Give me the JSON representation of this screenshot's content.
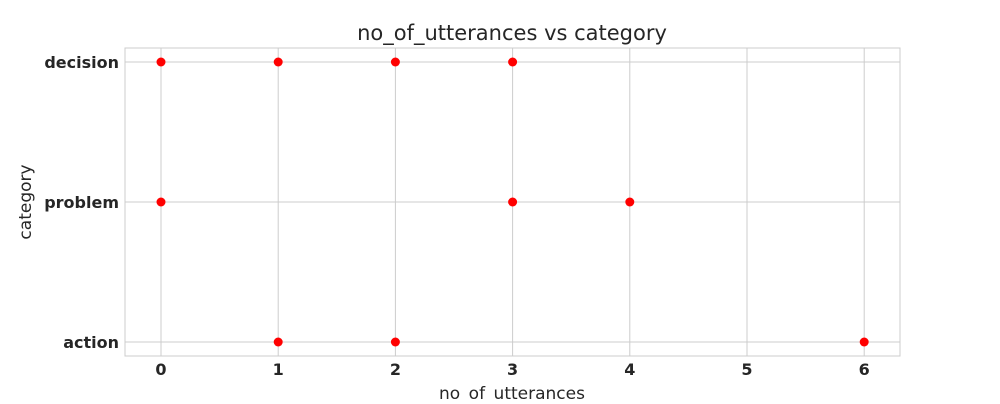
{
  "chart_data": {
    "type": "scatter",
    "title": "no_of_utterances vs category",
    "xlabel": "no_of_utterances",
    "ylabel": "category",
    "x_ticks": [
      0,
      1,
      2,
      3,
      4,
      5,
      6
    ],
    "categories": [
      "action",
      "problem",
      "decision"
    ],
    "xlim": [
      -0.3,
      6.3
    ],
    "grid": true,
    "marker_color": "#ff0000",
    "series": [
      {
        "points": [
          {
            "x": 0,
            "y": "decision"
          },
          {
            "x": 1,
            "y": "decision"
          },
          {
            "x": 2,
            "y": "decision"
          },
          {
            "x": 3,
            "y": "decision"
          },
          {
            "x": 0,
            "y": "problem"
          },
          {
            "x": 3,
            "y": "problem"
          },
          {
            "x": 4,
            "y": "problem"
          },
          {
            "x": 1,
            "y": "action"
          },
          {
            "x": 2,
            "y": "action"
          },
          {
            "x": 6,
            "y": "action"
          }
        ]
      }
    ]
  }
}
